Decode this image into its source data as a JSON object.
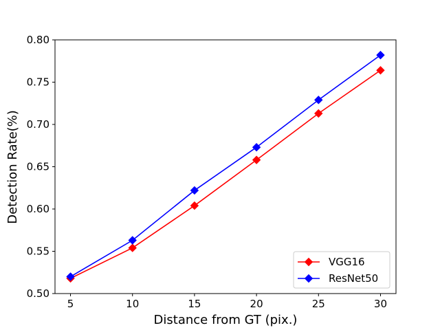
{
  "chart_data": {
    "type": "line",
    "title": "",
    "xlabel": "Distance from GT (pix.)",
    "ylabel": "Detection Rate(%)",
    "x": [
      5,
      10,
      15,
      20,
      25,
      30
    ],
    "xlim": [
      3.75,
      31.25
    ],
    "ylim": [
      0.5,
      0.8
    ],
    "xticks": [
      5,
      10,
      15,
      20,
      25,
      30
    ],
    "xtick_labels": [
      "5",
      "10",
      "15",
      "20",
      "25",
      "30"
    ],
    "yticks": [
      0.5,
      0.55,
      0.6,
      0.65,
      0.7,
      0.75,
      0.8
    ],
    "ytick_labels": [
      "0.50",
      "0.55",
      "0.60",
      "0.65",
      "0.70",
      "0.75",
      "0.80"
    ],
    "grid": false,
    "legend_position": "lower-right",
    "series": [
      {
        "name": "VGG16",
        "color": "#ff0000",
        "marker": "diamond",
        "values": [
          0.518,
          0.554,
          0.604,
          0.658,
          0.713,
          0.764
        ]
      },
      {
        "name": "ResNet50",
        "color": "#0000ff",
        "marker": "diamond",
        "values": [
          0.52,
          0.563,
          0.622,
          0.673,
          0.729,
          0.782
        ]
      }
    ]
  }
}
